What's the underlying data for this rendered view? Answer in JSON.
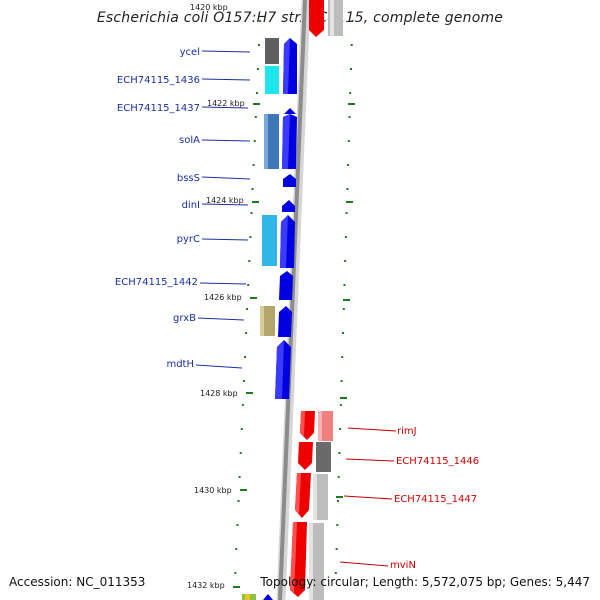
{
  "header": {
    "title": "Escherichia coli O157:H7 str. EC4115, complete genome",
    "top_tick": "1420 kbp"
  },
  "footer": {
    "accession": "Accession: NC_011353",
    "topology": "Topology: circular; Length: 5,572,075 bp; Genes: 5,447"
  },
  "colors": {
    "forward_gene": "#0000e0",
    "reverse_gene": "#ee0000",
    "forward_label": "#1a2fa0",
    "reverse_label": "#cc0000",
    "backbone": "#8c8c8c",
    "tick": "#1e7a1e"
  },
  "kbp_ticks": [
    "1422 kbp",
    "1424 kbp",
    "1426 kbp",
    "1428 kbp",
    "1430 kbp",
    "1432 kbp"
  ],
  "forward_genes": [
    "ycel",
    "ECH74115_1436",
    "ECH74115_1437",
    "solA",
    "bssS",
    "dinI",
    "pyrC",
    "ECH74115_1442",
    "grxB",
    "mdtH"
  ],
  "reverse_genes": [
    "rimJ",
    "ECH74115_1446",
    "ECH74115_1447",
    "mviN"
  ]
}
